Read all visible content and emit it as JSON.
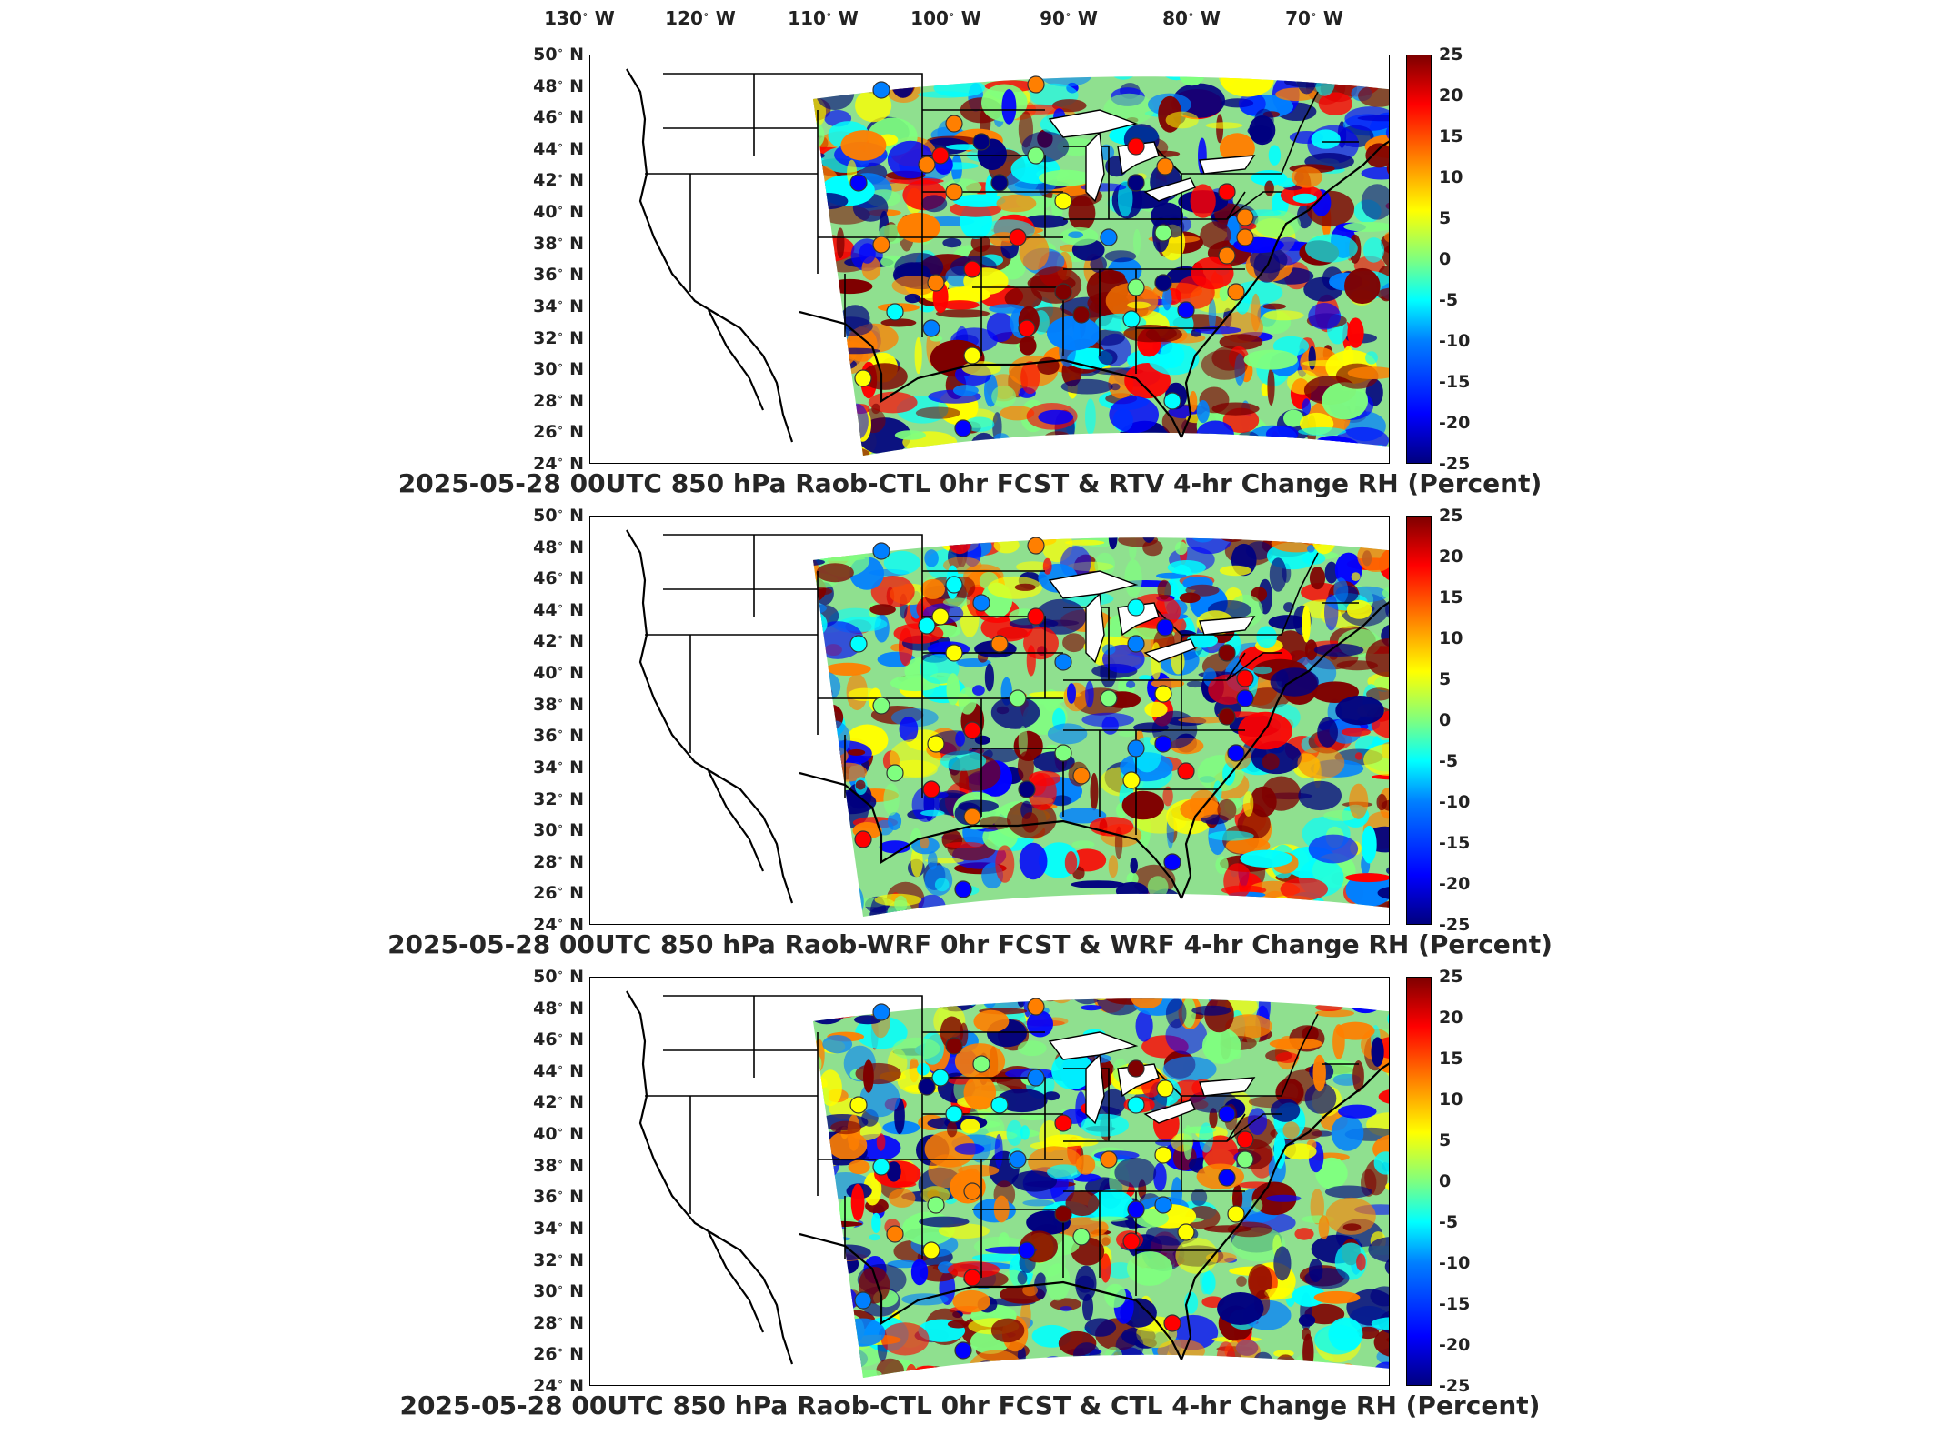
{
  "lon_ticks": [
    {
      "deg": "130",
      "dir": "W"
    },
    {
      "deg": "120",
      "dir": "W"
    },
    {
      "deg": "110",
      "dir": "W"
    },
    {
      "deg": "100",
      "dir": "W"
    },
    {
      "deg": "90",
      "dir": "W"
    },
    {
      "deg": "80",
      "dir": "W"
    },
    {
      "deg": "70",
      "dir": "W"
    }
  ],
  "lat_ticks": [
    {
      "deg": "50",
      "dir": "N"
    },
    {
      "deg": "48",
      "dir": "N"
    },
    {
      "deg": "46",
      "dir": "N"
    },
    {
      "deg": "44",
      "dir": "N"
    },
    {
      "deg": "42",
      "dir": "N"
    },
    {
      "deg": "40",
      "dir": "N"
    },
    {
      "deg": "38",
      "dir": "N"
    },
    {
      "deg": "36",
      "dir": "N"
    },
    {
      "deg": "34",
      "dir": "N"
    },
    {
      "deg": "32",
      "dir": "N"
    },
    {
      "deg": "30",
      "dir": "N"
    },
    {
      "deg": "28",
      "dir": "N"
    },
    {
      "deg": "26",
      "dir": "N"
    },
    {
      "deg": "24",
      "dir": "N"
    }
  ],
  "colorbar": {
    "ticks": [
      "25",
      "20",
      "15",
      "10",
      "5",
      "0",
      "-5",
      "-10",
      "-15",
      "-20",
      "-25"
    ],
    "min": -25,
    "max": 25,
    "colors": [
      "#00007f",
      "#0000ff",
      "#007fff",
      "#00ffff",
      "#7fff7f",
      "#ffff00",
      "#ff7f00",
      "#ff0000",
      "#7f0000"
    ]
  },
  "panels": [
    {
      "title": "2025-05-28 00UTC 850 hPa Raob-CTL 0hr FCST & RTV 4-hr Change RH (Percent)"
    },
    {
      "title": "2025-05-28 00UTC 850 hPa Raob-WRF 0hr FCST & WRF 4-hr Change RH (Percent)"
    },
    {
      "title": "2025-05-28 00UTC 850 hPa Raob-CTL 0hr FCST & CTL 4-hr Change RH (Percent)"
    }
  ]
}
